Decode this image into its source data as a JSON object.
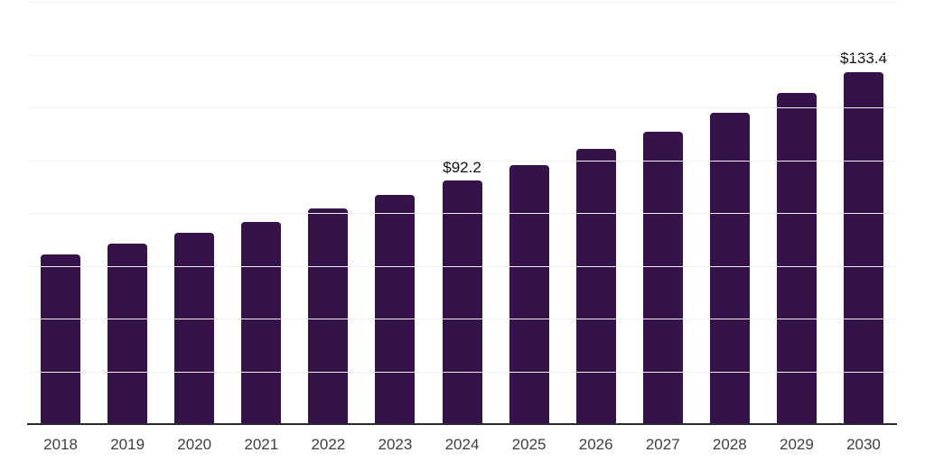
{
  "chart_data": {
    "type": "bar",
    "categories": [
      "2018",
      "2019",
      "2020",
      "2021",
      "2022",
      "2023",
      "2024",
      "2025",
      "2026",
      "2027",
      "2028",
      "2029",
      "2030"
    ],
    "values": [
      64.2,
      68.3,
      72.4,
      76.6,
      81.7,
      86.9,
      92.2,
      98.1,
      104.3,
      110.9,
      118.0,
      125.4,
      133.4
    ],
    "labeled_points": {
      "2024": "$92.2",
      "2030": "$133.4"
    },
    "title": "",
    "xlabel": "",
    "ylabel": "",
    "ylim": [
      0,
      160
    ],
    "gridline_step": 20,
    "grid": "horizontal-only",
    "legend": "none",
    "y_tick_labels_visible": false,
    "colors": {
      "bar": "#35124a",
      "gridline": "#f2f2f5",
      "axis_line": "#2b2b2e",
      "tick_label": "#3f3f3f",
      "data_label": "#111111"
    }
  }
}
